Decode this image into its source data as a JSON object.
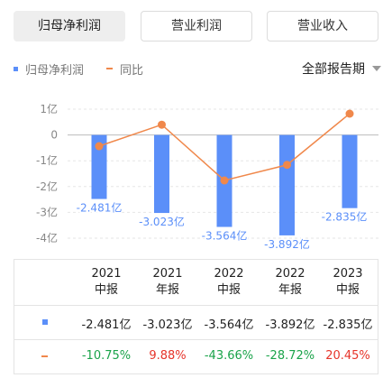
{
  "tabs": [
    {
      "label": "归母净利润",
      "active": true
    },
    {
      "label": "营业利润",
      "active": false
    },
    {
      "label": "营业收入",
      "active": false
    }
  ],
  "legend": {
    "bar_label": "归母净利润",
    "line_label": "同比"
  },
  "period_select": {
    "label": "全部报告期"
  },
  "colors": {
    "bar": "#5b8ff9",
    "line": "#f0884b",
    "negative": "#1aa34a",
    "positive": "#e6342a"
  },
  "chart_data": {
    "type": "bar",
    "categories": [
      "2021中报",
      "2021年报",
      "2022中报",
      "2022年报",
      "2023中报"
    ],
    "series": [
      {
        "name": "归母净利润",
        "type": "bar",
        "values": [
          -2.481,
          -3.023,
          -3.564,
          -3.892,
          -2.835
        ],
        "data_labels": [
          "-2.481亿",
          "-3.023亿",
          "-3.564亿",
          "-3.892亿",
          "-2.835亿"
        ]
      },
      {
        "name": "同比",
        "type": "line",
        "values": [
          -10.75,
          9.88,
          -43.66,
          -28.72,
          20.45
        ]
      }
    ],
    "y_ticks": [
      "1亿",
      "0",
      "-1亿",
      "-2亿",
      "-3亿",
      "-4亿"
    ],
    "ylim": [
      -4,
      1
    ],
    "grid": true
  },
  "table": {
    "headers": [
      {
        "year": "2021",
        "period": "中报"
      },
      {
        "year": "2021",
        "period": "年报"
      },
      {
        "year": "2022",
        "period": "中报"
      },
      {
        "year": "2022",
        "period": "年报"
      },
      {
        "year": "2023",
        "period": "中报"
      }
    ],
    "profit_row": [
      "-2.481亿",
      "-3.023亿",
      "-3.564亿",
      "-3.892亿",
      "-2.835亿"
    ],
    "yoy_row": [
      "-10.75%",
      "9.88%",
      "-43.66%",
      "-28.72%",
      "20.45%"
    ]
  }
}
